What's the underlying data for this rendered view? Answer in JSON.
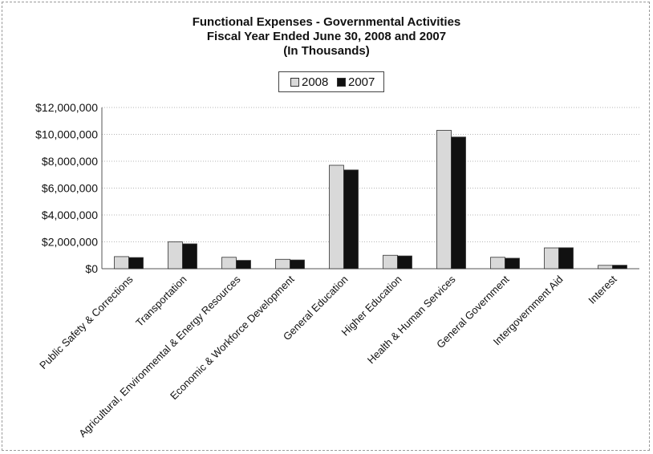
{
  "chart_data": {
    "type": "bar",
    "title": "Functional Expenses - Governmental Activities",
    "subtitle": "Fiscal Year Ended June 30, 2008 and 2007",
    "subtitle2": "(In Thousands)",
    "xlabel": "",
    "ylabel": "",
    "ylim": [
      0,
      12000000
    ],
    "yticks": [
      "$0",
      "$2,000,000",
      "$4,000,000",
      "$6,000,000",
      "$8,000,000",
      "$10,000,000",
      "$12,000,000"
    ],
    "ytick_values": [
      0,
      2000000,
      4000000,
      6000000,
      8000000,
      10000000,
      12000000
    ],
    "grid": true,
    "legend_position": "top-center",
    "categories": [
      "Public Safety & Corrections",
      "Transportation",
      "Agricultural, Environmental & Energy Resources",
      "Economic & Workforce Development",
      "General Education",
      "Higher Education",
      "Health & Human Services",
      "General Government",
      "Intergovernment Aid",
      "Interest"
    ],
    "series": [
      {
        "name": "2008",
        "color": "#d9d9d9",
        "values": [
          900000,
          2000000,
          850000,
          700000,
          7700000,
          1000000,
          10300000,
          850000,
          1550000,
          250000
        ]
      },
      {
        "name": "2007",
        "color": "#111111",
        "values": [
          830000,
          1850000,
          620000,
          650000,
          7350000,
          950000,
          9800000,
          780000,
          1560000,
          260000
        ]
      }
    ]
  }
}
